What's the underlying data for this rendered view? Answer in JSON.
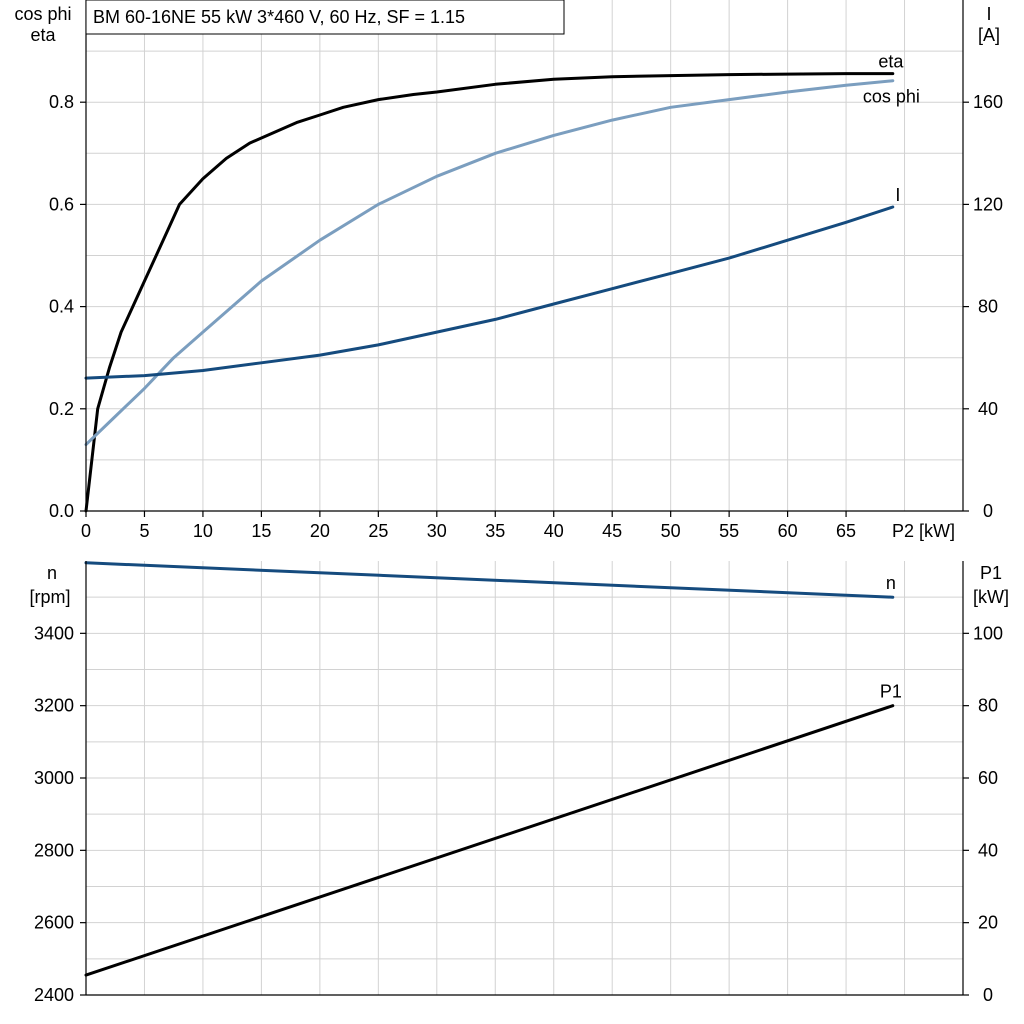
{
  "title": "BM 60-16NE   55 kW   3*460 V, 60 Hz, SF = 1.15",
  "top_left_axis": {
    "label1": "cos phi",
    "label2": "eta"
  },
  "top_right_axis": {
    "label1": "I",
    "label2": "[A]"
  },
  "bottom_left_axis": {
    "label1": "n",
    "label2": "[rpm]"
  },
  "bottom_right_axis": {
    "label1": "P1",
    "label2": "[kW]"
  },
  "x_axis": {
    "label": "P2 [kW]"
  },
  "colors": {
    "eta": "#000000",
    "cos_phi": "#7b9ebf",
    "I": "#154b7e",
    "n": "#154b7e",
    "P1": "#000000"
  },
  "chart_data": [
    {
      "type": "line",
      "xlabel": "P2 [kW]",
      "ylabel": "cos phi / eta",
      "ylabel_right": "I [A]",
      "xlim": [
        0,
        75
      ],
      "ylim": [
        0,
        1.0
      ],
      "ylim_right": [
        0,
        200
      ],
      "x_ticks": [
        "0",
        "5",
        "10",
        "15",
        "20",
        "25",
        "30",
        "35",
        "40",
        "45",
        "50",
        "55",
        "60",
        "65"
      ],
      "y_ticks": [
        "0.0",
        "0.2",
        "0.4",
        "0.6",
        "0.8"
      ],
      "y_ticks_right": [
        "0",
        "40",
        "80",
        "120",
        "160"
      ],
      "grid": true,
      "series": [
        {
          "name": "eta",
          "axis": "left",
          "x": [
            0,
            1,
            2,
            3,
            4,
            5,
            6,
            7,
            8,
            10,
            12,
            14,
            16,
            18,
            20,
            22,
            25,
            28,
            30,
            35,
            40,
            45,
            50,
            55,
            60,
            65,
            69
          ],
          "y": [
            0.0,
            0.2,
            0.28,
            0.35,
            0.4,
            0.45,
            0.5,
            0.55,
            0.6,
            0.65,
            0.69,
            0.72,
            0.74,
            0.76,
            0.775,
            0.79,
            0.805,
            0.815,
            0.82,
            0.835,
            0.845,
            0.85,
            0.852,
            0.854,
            0.855,
            0.856,
            0.856
          ]
        },
        {
          "name": "cos phi",
          "axis": "left",
          "x": [
            0,
            2.5,
            5,
            7.5,
            10,
            15,
            20,
            25,
            30,
            35,
            40,
            45,
            50,
            55,
            60,
            65,
            69
          ],
          "y": [
            0.13,
            0.185,
            0.24,
            0.3,
            0.35,
            0.45,
            0.53,
            0.6,
            0.655,
            0.7,
            0.735,
            0.765,
            0.79,
            0.805,
            0.82,
            0.833,
            0.842
          ]
        },
        {
          "name": "I",
          "axis": "right",
          "x": [
            0,
            5,
            10,
            15,
            20,
            25,
            30,
            35,
            40,
            45,
            50,
            55,
            60,
            65,
            69
          ],
          "y": [
            52,
            53,
            55,
            58,
            61,
            65,
            70,
            75,
            81,
            87,
            93,
            99,
            106,
            113,
            119
          ]
        }
      ]
    },
    {
      "type": "line",
      "xlabel": "P2 [kW]",
      "ylabel": "n [rpm]",
      "ylabel_right": "P1 [kW]",
      "xlim": [
        0,
        75
      ],
      "ylim": [
        2400,
        3600
      ],
      "ylim_right": [
        0,
        120
      ],
      "y_ticks": [
        "2400",
        "2600",
        "2800",
        "3000",
        "3200",
        "3400"
      ],
      "y_ticks_right": [
        "0",
        "20",
        "40",
        "60",
        "80",
        "100"
      ],
      "grid": true,
      "series": [
        {
          "name": "n",
          "axis": "left",
          "x": [
            0,
            69
          ],
          "y": [
            3595,
            3500
          ]
        },
        {
          "name": "P1",
          "axis": "right",
          "x": [
            0,
            69
          ],
          "y": [
            5.5,
            80
          ]
        }
      ]
    }
  ]
}
